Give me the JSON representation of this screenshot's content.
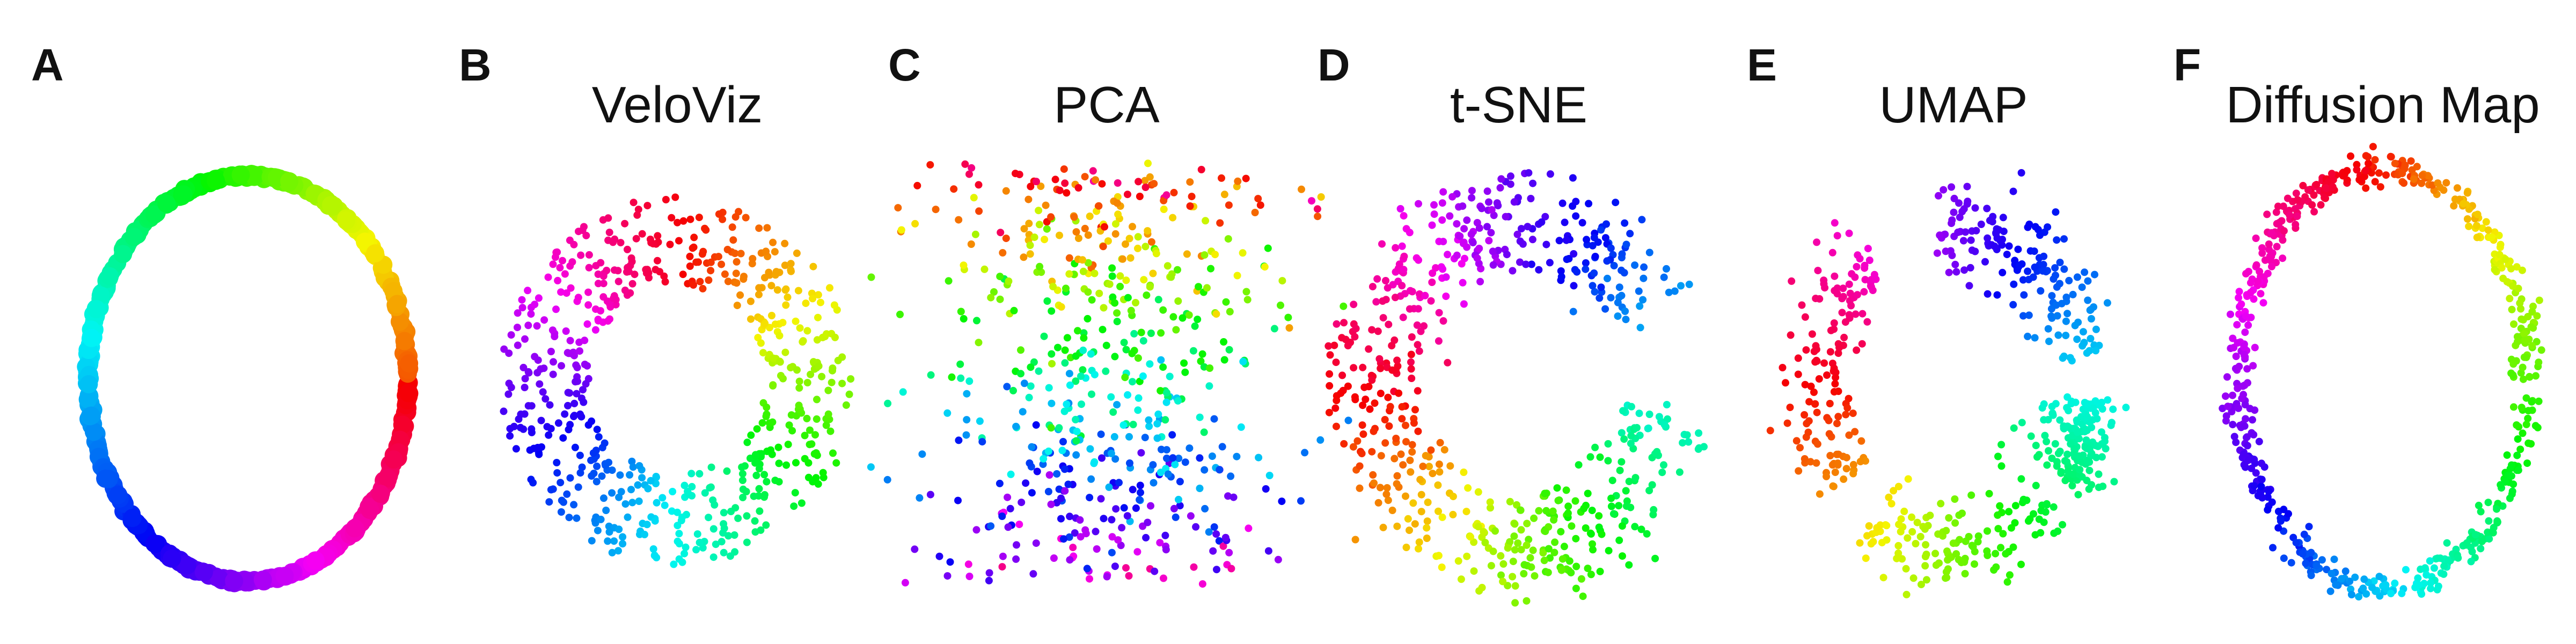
{
  "figure": {
    "panels": [
      {
        "letter": "A",
        "title": ""
      },
      {
        "letter": "B",
        "title": "VeloViz"
      },
      {
        "letter": "C",
        "title": "PCA"
      },
      {
        "letter": "D",
        "title": "t-SNE"
      },
      {
        "letter": "E",
        "title": "UMAP"
      },
      {
        "letter": "F",
        "title": "Diffusion Map"
      }
    ]
  },
  "chart_data": [
    {
      "type": "scatter",
      "panel": "A",
      "title": "",
      "shape": "ellipse-ring",
      "n_points": 600,
      "color_encoding": "hue along cycle (red → orange → yellow → green → cyan → blue → purple → magenta)",
      "axes": false
    },
    {
      "type": "scatter",
      "panel": "B",
      "title": "VeloViz",
      "shape": "ring",
      "n_points": 600,
      "color_encoding": "hue along cycle",
      "axes": false
    },
    {
      "type": "scatter",
      "panel": "C",
      "title": "PCA",
      "shape": "diffuse cloud",
      "n_points": 600,
      "color_encoding": "hue along cycle",
      "axes": false
    },
    {
      "type": "scatter",
      "panel": "D",
      "title": "t-SNE",
      "shape": "broken ring",
      "n_points": 600,
      "color_encoding": "hue along cycle",
      "axes": false
    },
    {
      "type": "scatter",
      "panel": "E",
      "title": "UMAP",
      "shape": "fragmented ring",
      "n_points": 600,
      "color_encoding": "hue along cycle",
      "axes": false
    },
    {
      "type": "scatter",
      "panel": "F",
      "title": "Diffusion Map",
      "shape": "thin ellipse",
      "n_points": 600,
      "color_encoding": "hue along cycle",
      "axes": false
    }
  ]
}
